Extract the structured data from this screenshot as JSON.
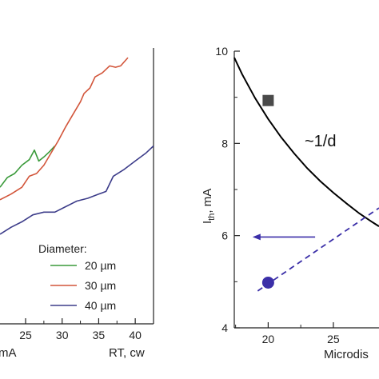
{
  "chart_data": [
    {
      "type": "line",
      "title": "",
      "xlabel": "RT, cw",
      "ylabel": "",
      "partial_xlabel": "mA",
      "x_ticks": [
        "25",
        "30",
        "35",
        "40"
      ],
      "xlim": [
        21.5,
        42.5
      ],
      "ylim": [
        0,
        10
      ],
      "grid": false,
      "legend": {
        "title": "Diameter:",
        "placement": "bottom-right",
        "entries": [
          "20 µm",
          "30 µm",
          "40 µm"
        ]
      },
      "series": [
        {
          "name": "20 µm",
          "color": "#3a9a3a",
          "x": [
            21.5,
            22.5,
            23.5,
            24.5,
            25.5,
            26.2,
            26.8,
            27.5,
            28.3,
            29.0
          ],
          "y": [
            4.95,
            5.3,
            5.45,
            5.75,
            5.95,
            6.3,
            5.9,
            6.05,
            6.25,
            6.45
          ]
        },
        {
          "name": "30 µm",
          "color": "#d2553a",
          "x": [
            21.5,
            23.0,
            24.5,
            25.5,
            26.5,
            27.5,
            28.5,
            29.5,
            30.5,
            31.5,
            32.5,
            33.0,
            33.8,
            34.5,
            35.5,
            36.5,
            37.3,
            38.0,
            39.0
          ],
          "y": [
            4.5,
            4.7,
            4.95,
            5.35,
            5.45,
            5.75,
            6.2,
            6.65,
            7.15,
            7.6,
            8.05,
            8.35,
            8.55,
            8.95,
            9.1,
            9.35,
            9.3,
            9.35,
            9.65
          ]
        },
        {
          "name": "40 µm",
          "color": "#3d3d8a",
          "x": [
            21.5,
            23.0,
            24.5,
            26.0,
            27.5,
            29.0,
            30.5,
            32.0,
            33.5,
            35.0,
            36.0,
            37.0,
            38.5,
            40.0,
            41.5,
            42.5
          ],
          "y": [
            3.25,
            3.5,
            3.7,
            3.95,
            4.05,
            4.05,
            4.25,
            4.45,
            4.55,
            4.7,
            4.8,
            5.35,
            5.6,
            5.9,
            6.2,
            6.45
          ]
        }
      ]
    },
    {
      "type": "scatter",
      "title": "",
      "xlabel": "Microdis",
      "ylabel_main": "I",
      "ylabel_sub": "th",
      "ylabel_unit": ", mA",
      "x_ticks": [
        "20",
        "25"
      ],
      "y_ticks": [
        "4",
        "6",
        "8",
        "10"
      ],
      "xlim": [
        17.4,
        28.5
      ],
      "ylim": [
        4,
        10
      ],
      "grid": false,
      "annotation": "~1/d",
      "series": [
        {
          "name": "",
          "type": "line",
          "color": "#000000",
          "x": [
            17.4,
            18.0,
            19.0,
            20.0,
            21.0,
            22.0,
            23.0,
            24.0,
            25.0,
            26.0,
            27.0,
            28.0,
            28.5
          ],
          "y": [
            9.86,
            9.5,
            8.98,
            8.53,
            8.13,
            7.78,
            7.46,
            7.18,
            6.93,
            6.7,
            6.48,
            6.29,
            6.2
          ]
        },
        {
          "name": "",
          "type": "marker",
          "marker": "square",
          "color": "#4a4a4a",
          "x": [
            20.0
          ],
          "y": [
            8.93
          ]
        },
        {
          "name": "",
          "type": "marker",
          "marker": "circle",
          "color": "#3b2fa8",
          "x": [
            20.0
          ],
          "y": [
            4.98
          ]
        },
        {
          "name": "",
          "type": "dashed-line",
          "color": "#3b2fa8",
          "x": [
            19.2,
            28.5
          ],
          "y": [
            4.8,
            6.6
          ]
        },
        {
          "name": "",
          "type": "arrow",
          "color": "#3b2fa8",
          "x": [
            23.6,
            18.8
          ],
          "y": [
            5.97,
            5.97
          ]
        }
      ]
    }
  ]
}
